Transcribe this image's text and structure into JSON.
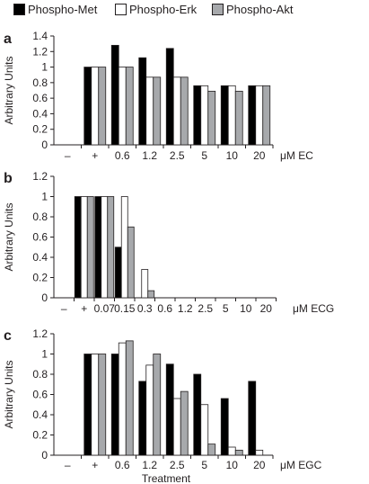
{
  "colors": {
    "phospho_met": "#000000",
    "phospho_erk": "#ffffff",
    "phospho_akt": "#a7a9ac",
    "axis": "#231f20"
  },
  "legend": {
    "position": "top",
    "items": [
      {
        "label": "Phospho-Met",
        "color_key": "phospho_met"
      },
      {
        "label": "Phospho-Erk",
        "color_key": "phospho_erk"
      },
      {
        "label": "Phospho-Akt",
        "color_key": "phospho_akt"
      }
    ]
  },
  "chart_data": [
    {
      "type": "bar",
      "panel_label": "a",
      "ylabel": "Arbitrary Units",
      "ylim": [
        0,
        1.4
      ],
      "yticks": [
        "0",
        "0.2",
        "0.4",
        "0.6",
        "0.8",
        "1",
        "1.2",
        "1.4"
      ],
      "unit_label": "μM EC",
      "xlabel": "",
      "categories": [
        "–",
        "+",
        "0.6",
        "1.2",
        "2.5",
        "5",
        "10",
        "20"
      ],
      "series": [
        {
          "name": "Phospho-Met",
          "values": [
            0,
            1.0,
            1.28,
            1.12,
            1.24,
            0.76,
            0.76,
            0.76
          ]
        },
        {
          "name": "Phospho-Erk",
          "values": [
            0,
            1.0,
            1.0,
            0.87,
            0.87,
            0.76,
            0.76,
            0.76
          ]
        },
        {
          "name": "Phospho-Akt",
          "values": [
            0,
            1.0,
            1.0,
            0.87,
            0.87,
            0.69,
            0.69,
            0.76
          ]
        }
      ]
    },
    {
      "type": "bar",
      "panel_label": "b",
      "ylabel": "Arbitrary Units",
      "ylim": [
        0,
        1.2
      ],
      "yticks": [
        "0",
        "0.2",
        "0.4",
        "0.6",
        "0.8",
        "1",
        "1.2"
      ],
      "unit_label": "μM ECG",
      "xlabel": "",
      "categories": [
        "–",
        "+",
        "0.07",
        "0.15",
        "0.3",
        "0.6",
        "1.2",
        "2.5",
        "5",
        "10",
        "20"
      ],
      "series": [
        {
          "name": "Phospho-Met",
          "values": [
            0,
            1.0,
            1.0,
            0.5,
            0,
            0,
            0,
            0,
            0,
            0,
            0
          ]
        },
        {
          "name": "Phospho-Erk",
          "values": [
            0,
            1.0,
            1.0,
            1.0,
            0.28,
            0,
            0,
            0,
            0,
            0,
            0
          ]
        },
        {
          "name": "Phospho-Akt",
          "values": [
            0,
            1.0,
            1.0,
            0.7,
            0.07,
            0,
            0,
            0,
            0,
            0,
            0
          ]
        }
      ]
    },
    {
      "type": "bar",
      "panel_label": "c",
      "ylabel": "Arbitrary Units",
      "ylim": [
        0,
        1.2
      ],
      "yticks": [
        "0",
        "0.2",
        "0.4",
        "0.6",
        "0.8",
        "1",
        "1.2"
      ],
      "unit_label": "μM EGC",
      "xlabel": "Treatment",
      "categories": [
        "–",
        "+",
        "0.6",
        "1.2",
        "2.5",
        "5",
        "10",
        "20"
      ],
      "series": [
        {
          "name": "Phospho-Met",
          "values": [
            0,
            1.0,
            1.0,
            0.73,
            0.9,
            0.8,
            0.56,
            0.73
          ]
        },
        {
          "name": "Phospho-Erk",
          "values": [
            0,
            1.0,
            1.11,
            0.89,
            0.56,
            0.5,
            0.08,
            0.05
          ]
        },
        {
          "name": "Phospho-Akt",
          "values": [
            0,
            1.0,
            1.13,
            1.0,
            0.63,
            0.11,
            0.05,
            0
          ]
        }
      ]
    }
  ]
}
